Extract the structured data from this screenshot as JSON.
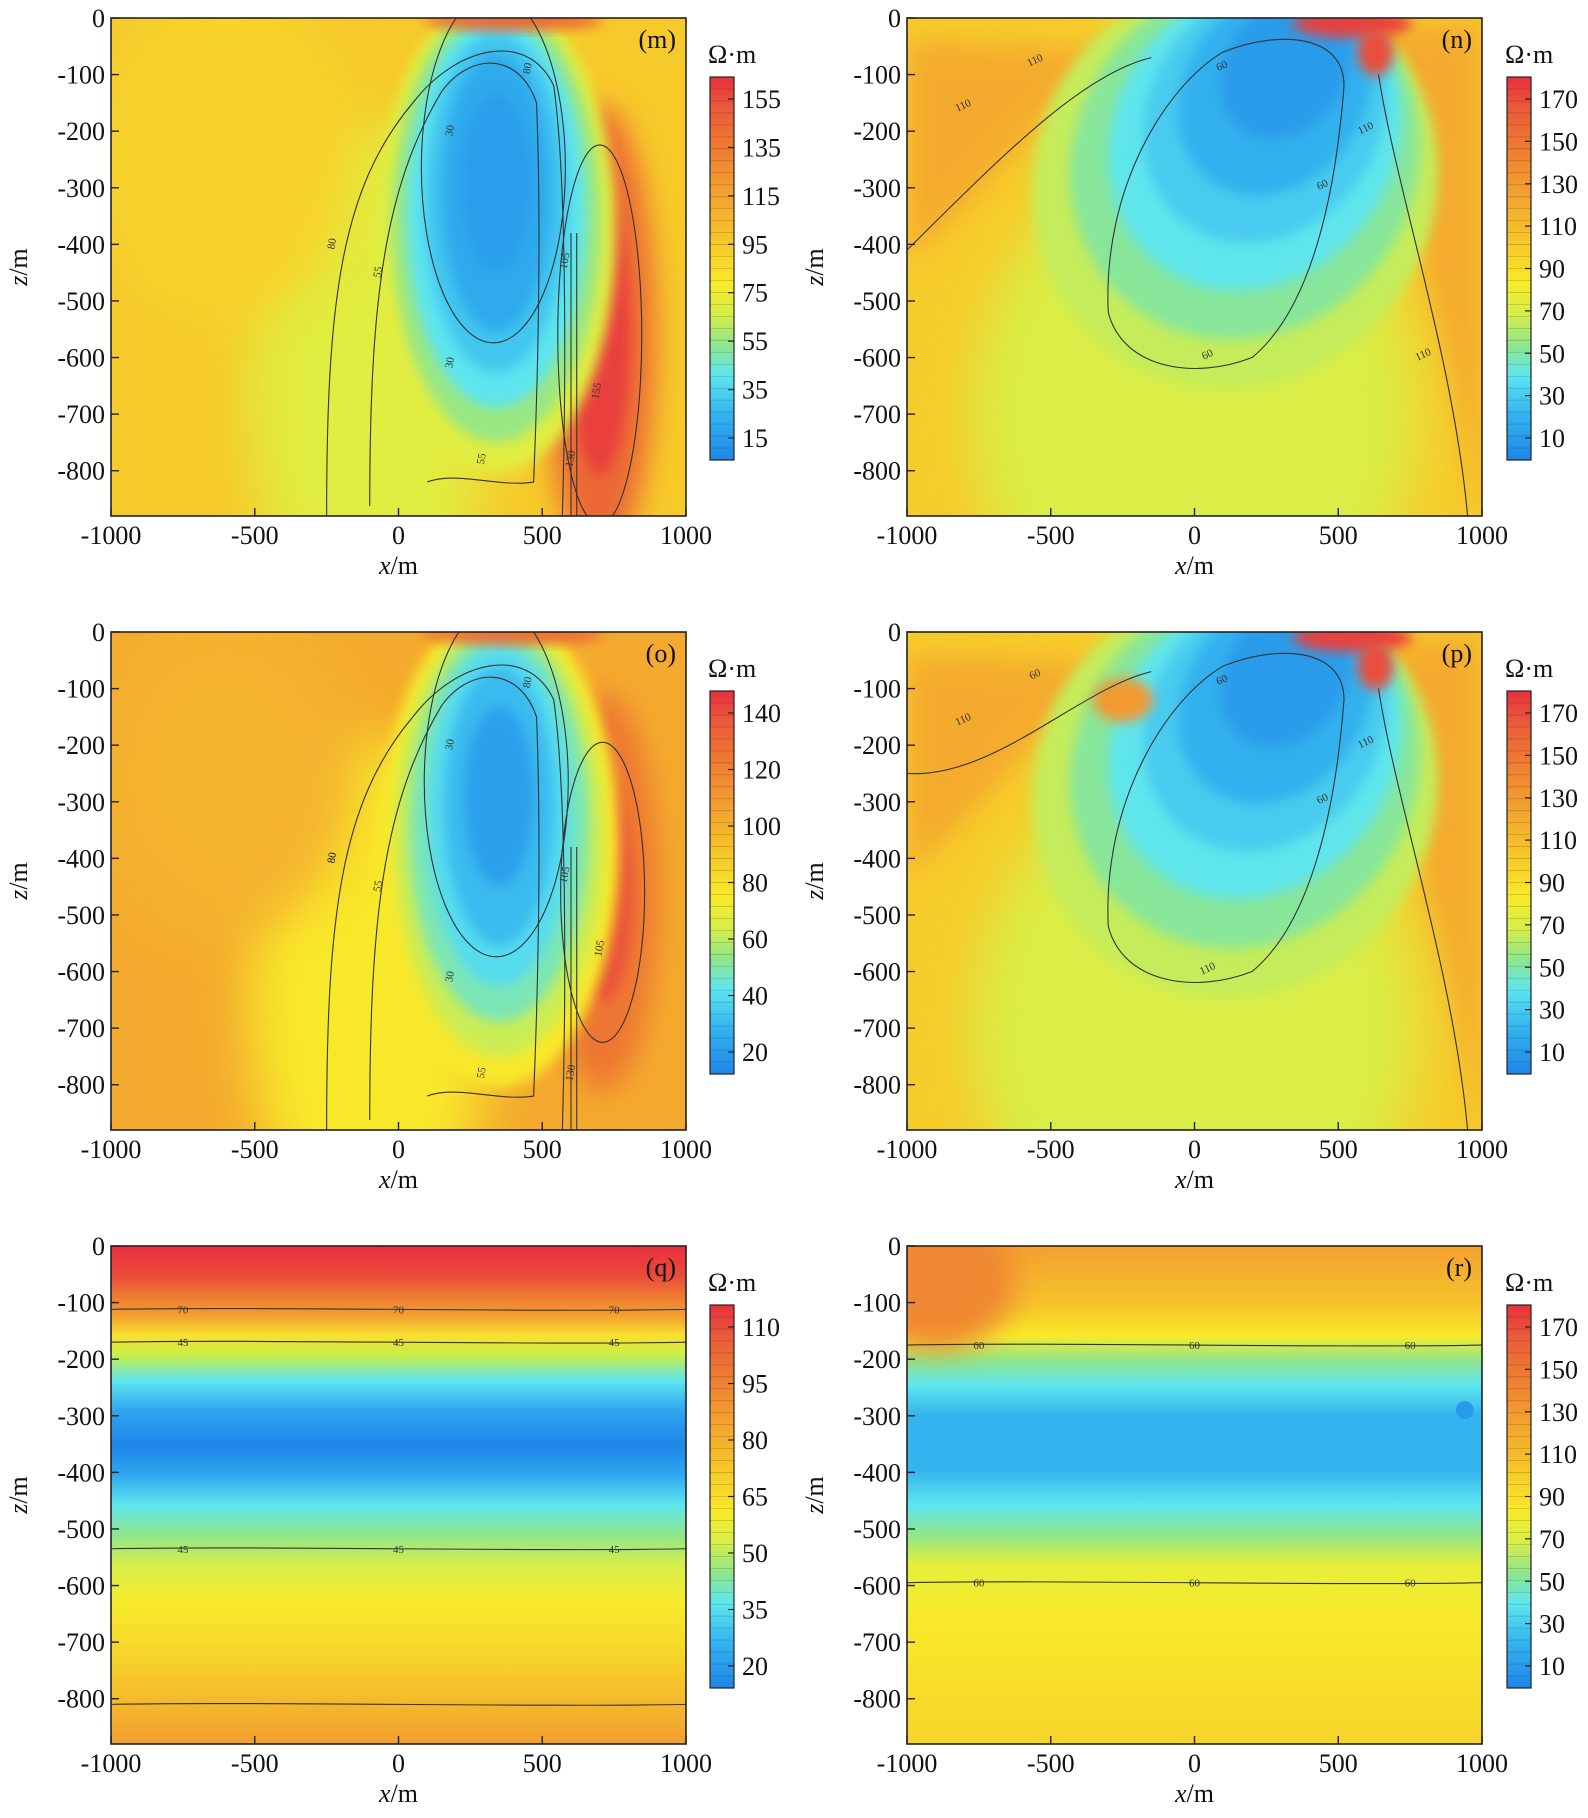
{
  "figure": {
    "x_ticks": [
      "-1000",
      "-500",
      "0",
      "500",
      "1000"
    ],
    "z_ticks": [
      "0",
      "-100",
      "-200",
      "-300",
      "-400",
      "-500",
      "-600",
      "-700",
      "-800"
    ],
    "x_label_var": "x",
    "z_label_var": "z",
    "axis_unit": "/m",
    "colorbar_unit": "Ω·m"
  },
  "chart_data": [
    {
      "type": "heatmap",
      "panel": "(m)",
      "xlim": [
        -1000,
        1000
      ],
      "zlim": [
        -880,
        0
      ],
      "colorbar": {
        "ticks": [
          "155",
          "135",
          "115",
          "95",
          "75",
          "55",
          "35",
          "15"
        ],
        "range": [
          5,
          165
        ]
      },
      "contour_labels": [
        "80",
        "55",
        "30",
        "30",
        "55",
        "80",
        "105",
        "130",
        "155"
      ],
      "features": [
        {
          "kind": "conductor",
          "center_x": 330,
          "center_z": -300,
          "min_value": 15
        },
        {
          "kind": "resistor",
          "center_x": 700,
          "center_z": -560,
          "max_value": 160
        }
      ],
      "grid": false,
      "legend": "right"
    },
    {
      "type": "heatmap",
      "panel": "(n)",
      "xlim": [
        -1000,
        1000
      ],
      "zlim": [
        -880,
        0
      ],
      "colorbar": {
        "ticks": [
          "170",
          "150",
          "130",
          "110",
          "90",
          "70",
          "50",
          "30",
          "10"
        ],
        "range": [
          0,
          180
        ]
      },
      "contour_labels": [
        "110",
        "110",
        "60",
        "60",
        "60",
        "110",
        "110"
      ],
      "features": [
        {
          "kind": "conductor",
          "center_x": 320,
          "center_z": -150,
          "min_value": 10
        },
        {
          "kind": "shallow resistor",
          "center_x": 620,
          "center_z": -30,
          "max_value": 180
        }
      ],
      "grid": false,
      "legend": "right"
    },
    {
      "type": "heatmap",
      "panel": "(o)",
      "xlim": [
        -1000,
        1000
      ],
      "zlim": [
        -880,
        0
      ],
      "colorbar": {
        "ticks": [
          "140",
          "120",
          "100",
          "80",
          "60",
          "40",
          "20"
        ],
        "range": [
          0,
          150
        ]
      },
      "contour_labels": [
        "80",
        "55",
        "30",
        "30",
        "55",
        "80",
        "105",
        "130",
        "105",
        "80"
      ],
      "features": [
        {
          "kind": "conductor",
          "center_x": 340,
          "center_z": -300,
          "min_value": 10
        },
        {
          "kind": "resistor",
          "center_x": 710,
          "center_z": -460,
          "max_value": 140
        }
      ],
      "grid": false,
      "legend": "right"
    },
    {
      "type": "heatmap",
      "panel": "(p)",
      "xlim": [
        -1000,
        1000
      ],
      "zlim": [
        -880,
        0
      ],
      "colorbar": {
        "ticks": [
          "170",
          "150",
          "130",
          "110",
          "90",
          "70",
          "50",
          "30",
          "10"
        ],
        "range": [
          0,
          180
        ]
      },
      "contour_labels": [
        "110",
        "60",
        "60",
        "60",
        "110",
        "110"
      ],
      "features": [
        {
          "kind": "conductor",
          "center_x": 320,
          "center_z": -140,
          "min_value": 10
        },
        {
          "kind": "resistor",
          "center_x": -250,
          "center_z": -120,
          "max_value": 130
        }
      ],
      "grid": false,
      "legend": "right"
    },
    {
      "type": "heatmap",
      "panel": "(q)",
      "xlim": [
        -1000,
        1000
      ],
      "zlim": [
        -880,
        0
      ],
      "colorbar": {
        "ticks": [
          "110",
          "95",
          "80",
          "65",
          "50",
          "35",
          "20"
        ],
        "range": [
          20,
          115
        ]
      },
      "contour_labels": [
        "70",
        "70",
        "70",
        "45",
        "45",
        "45",
        "45",
        "45",
        "45"
      ],
      "layers": [
        {
          "z_top": 0,
          "z_bottom": -100,
          "value": 100
        },
        {
          "z_top": -100,
          "z_bottom": -200,
          "value": 55
        },
        {
          "z_top": -200,
          "z_bottom": -400,
          "value": 25
        },
        {
          "z_top": -400,
          "z_bottom": -600,
          "value": 40
        },
        {
          "z_top": -600,
          "z_bottom": -880,
          "value": 60
        }
      ],
      "grid": false,
      "legend": "right"
    },
    {
      "type": "heatmap",
      "panel": "(r)",
      "xlim": [
        -1000,
        1000
      ],
      "zlim": [
        -880,
        0
      ],
      "colorbar": {
        "ticks": [
          "170",
          "150",
          "130",
          "110",
          "90",
          "70",
          "50",
          "30",
          "10"
        ],
        "range": [
          0,
          180
        ]
      },
      "contour_labels": [
        "60",
        "60",
        "60",
        "60",
        "60",
        "60"
      ],
      "layers": [
        {
          "z_top": 0,
          "z_bottom": -150,
          "value": 100
        },
        {
          "z_top": -150,
          "z_bottom": -250,
          "value": 45
        },
        {
          "z_top": -250,
          "z_bottom": -450,
          "value": 25
        },
        {
          "z_top": -450,
          "z_bottom": -600,
          "value": 45
        },
        {
          "z_top": -600,
          "z_bottom": -880,
          "value": 75
        }
      ],
      "grid": false,
      "legend": "right"
    }
  ]
}
